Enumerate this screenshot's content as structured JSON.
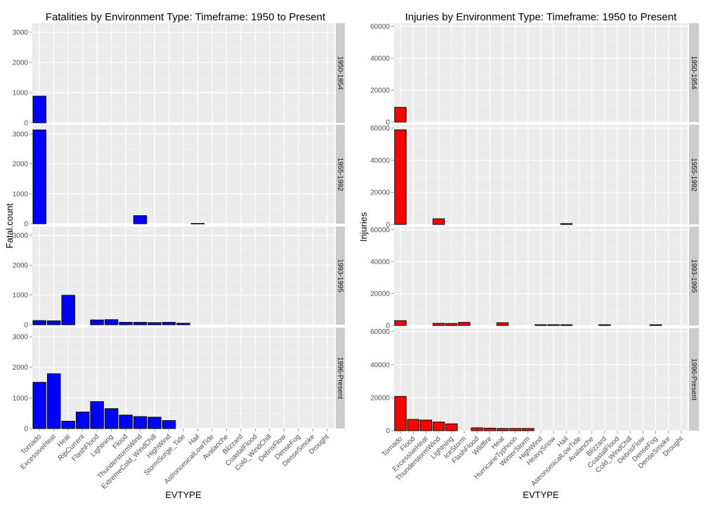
{
  "chart_data": [
    {
      "type": "bar",
      "title": "Fatalities by Environment Type:  Timeframe: 1950 to Present",
      "xlabel": "EVTYPE",
      "ylabel": "Fatal.count",
      "ylim": [
        0,
        3300
      ],
      "yticks": [
        0,
        1000,
        2000,
        3000
      ],
      "grid": true,
      "bar_color": "#0000FF",
      "categories": [
        "Tornado",
        "ExcessiveHeat",
        "Heat",
        "RipCurrent",
        "FlashFlood",
        "Lightning",
        "Flood",
        "ThunderstormWind",
        "ExtremeCold_WindChill",
        "HighWind",
        "StormSurge_Tide",
        "Hail",
        "AstronomicalLowTide",
        "Avalanche",
        "Blizzard",
        "CoastalFlood",
        "Cold_WindChill",
        "DebrisFlow",
        "DenseFog",
        "DenseSmoke",
        "Drought"
      ],
      "series": [
        {
          "panel": "1950-1954",
          "values": [
            880,
            0,
            0,
            0,
            0,
            0,
            0,
            0,
            0,
            0,
            0,
            0,
            0,
            0,
            0,
            0,
            0,
            0,
            0,
            0,
            0
          ]
        },
        {
          "panel": "1955-1992",
          "values": [
            3130,
            0,
            0,
            0,
            0,
            0,
            0,
            270,
            0,
            0,
            0,
            10,
            0,
            0,
            0,
            0,
            0,
            0,
            0,
            0,
            0
          ]
        },
        {
          "panel": "1993-1995",
          "values": [
            140,
            130,
            990,
            0,
            160,
            170,
            80,
            80,
            70,
            80,
            50,
            0,
            0,
            0,
            0,
            0,
            0,
            0,
            0,
            0,
            0
          ]
        },
        {
          "panel": "1996-Present",
          "values": [
            1510,
            1790,
            240,
            540,
            880,
            650,
            440,
            390,
            370,
            260,
            0,
            0,
            0,
            0,
            0,
            0,
            0,
            0,
            0,
            0,
            0
          ]
        }
      ]
    },
    {
      "type": "bar",
      "title": "Injuries by Environment Type:  Timeframe: 1950 to Present",
      "xlabel": "EVTYPE",
      "ylabel": "Injuries",
      "ylim": [
        0,
        62000
      ],
      "yticks": [
        0,
        20000,
        40000,
        60000
      ],
      "grid": true,
      "bar_color": "#FF0000",
      "categories": [
        "Tornado",
        "Flood",
        "ExcessiveHeat",
        "ThunderstormWind",
        "Lightning",
        "IceStorm",
        "FlashFlood",
        "Wildfire",
        "Heat",
        "HurricaneTyphoon",
        "WinterStorm",
        "HighWind",
        "HeavySnow",
        "Hail",
        "AstronomicalLowTide",
        "Avalanche",
        "Blizzard",
        "CoastalFlood",
        "Cold_WindChill",
        "DebrisFlow",
        "DenseFog",
        "DenseSmoke",
        "Drought"
      ],
      "series": [
        {
          "panel": "1950-1954",
          "values": [
            9200,
            0,
            0,
            0,
            0,
            0,
            0,
            0,
            0,
            0,
            0,
            0,
            0,
            0,
            0,
            0,
            0,
            0,
            0,
            0,
            0,
            0,
            0
          ]
        },
        {
          "panel": "1955-1992",
          "values": [
            58900,
            0,
            0,
            3500,
            0,
            0,
            0,
            0,
            0,
            0,
            0,
            0,
            0,
            500,
            0,
            0,
            0,
            0,
            0,
            0,
            0,
            0,
            0
          ]
        },
        {
          "panel": "1993-1995",
          "values": [
            3000,
            0,
            0,
            1300,
            1200,
            1900,
            0,
            0,
            1700,
            0,
            0,
            450,
            450,
            450,
            0,
            0,
            450,
            0,
            0,
            0,
            450,
            0,
            0
          ]
        },
        {
          "panel": "1996-Present",
          "values": [
            20700,
            6800,
            6400,
            5200,
            4100,
            0,
            1700,
            1500,
            1300,
            1300,
            1300,
            0,
            0,
            0,
            0,
            0,
            0,
            0,
            0,
            0,
            0,
            0,
            0
          ]
        }
      ]
    }
  ]
}
